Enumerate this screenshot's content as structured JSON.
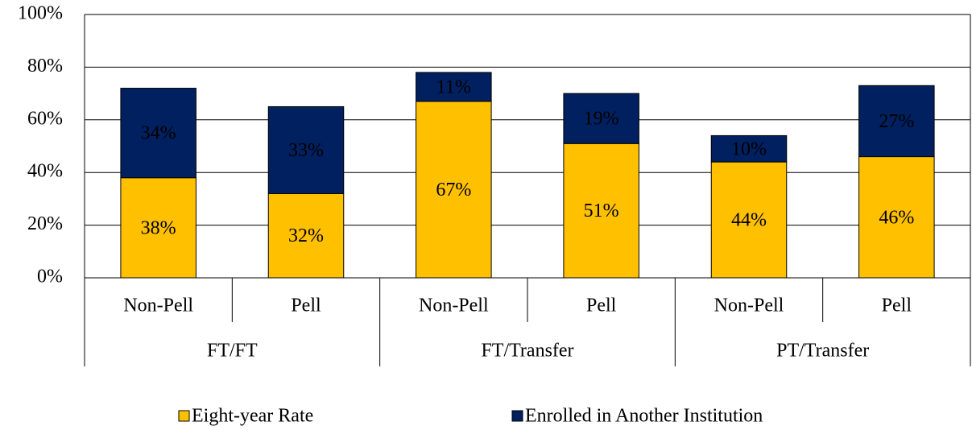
{
  "chart_data": {
    "type": "stacked_bar",
    "categories": [
      "Non-Pell",
      "Pell",
      "Non-Pell",
      "Pell",
      "Non-Pell",
      "Pell"
    ],
    "category_groups": [
      "FT/FT",
      "FT/Transfer",
      "PT/Transfer"
    ],
    "series": [
      {
        "name": "Eight-year Rate",
        "color": "#FFC000",
        "values": [
          38,
          32,
          67,
          51,
          44,
          46
        ],
        "value_labels": [
          "38%",
          "32%",
          "67%",
          "51%",
          "44%",
          "46%"
        ]
      },
      {
        "name": "Enrolled in Another Institution",
        "color": "#002060",
        "values": [
          34,
          33,
          11,
          19,
          10,
          27
        ],
        "value_labels": [
          "34%",
          "33%",
          "11%",
          "19%",
          "10%",
          "27%"
        ]
      }
    ],
    "ylim": [
      0,
      100
    ],
    "yticks": [
      {
        "value": 0,
        "label": "0%"
      },
      {
        "value": 20,
        "label": "20%"
      },
      {
        "value": 40,
        "label": "40%"
      },
      {
        "value": 60,
        "label": "60%"
      },
      {
        "value": 80,
        "label": "80%"
      },
      {
        "value": 100,
        "label": "100%"
      }
    ],
    "grid": true,
    "legend": "bottom"
  }
}
